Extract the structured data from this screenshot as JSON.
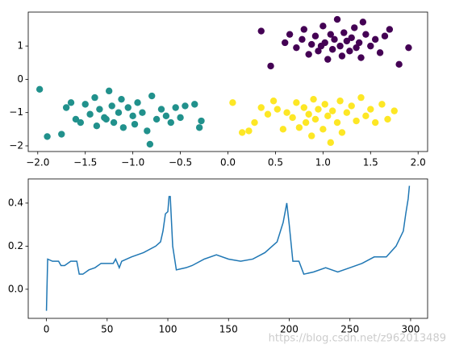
{
  "chart_data": [
    {
      "type": "scatter",
      "xlim": [
        -2.1,
        2.1
      ],
      "ylim": [
        -2.17,
        2.02
      ],
      "xticks": [
        {
          "value": -2,
          "label": "−2.0"
        },
        {
          "value": -1.5,
          "label": "−1.5"
        },
        {
          "value": -1,
          "label": "−1.0"
        },
        {
          "value": -0.5,
          "label": "−0.5"
        },
        {
          "value": 0,
          "label": "0.0"
        },
        0.5,
        {
          "value": 1,
          "label": "1.0"
        },
        1.5,
        {
          "value": 2,
          "label": "2.0"
        }
      ],
      "yticks": [
        {
          "value": -2,
          "label": "−2"
        },
        {
          "value": -1,
          "label": "−1"
        },
        0,
        1
      ],
      "series": [
        {
          "color": "#440154",
          "x": [
            0.35,
            0.45,
            0.6,
            0.65,
            0.72,
            0.78,
            0.8,
            0.85,
            0.88,
            0.92,
            0.95,
            1.0,
            1.02,
            1.05,
            1.08,
            1.1,
            1.12,
            1.15,
            1.18,
            1.2,
            1.22,
            1.25,
            1.28,
            1.3,
            1.33,
            1.35,
            1.38,
            1.4,
            1.45,
            1.5,
            1.55,
            1.6,
            1.65,
            1.7,
            1.8,
            1.9,
            0.98,
            1.42
          ],
          "y": [
            1.45,
            0.4,
            1.1,
            1.35,
            0.95,
            1.2,
            1.5,
            0.75,
            1.05,
            1.3,
            0.85,
            1.6,
            1.1,
            0.6,
            1.35,
            0.9,
            1.2,
            1.8,
            1.0,
            0.7,
            1.4,
            1.15,
            0.85,
            1.25,
            1.55,
            0.95,
            1.1,
            0.65,
            1.35,
            1.0,
            1.2,
            0.8,
            1.3,
            1.5,
            0.45,
            0.95,
            1.0,
            1.72
          ]
        },
        {
          "color": "#21918c",
          "x": [
            -1.98,
            -1.9,
            -1.75,
            -1.7,
            -1.65,
            -1.6,
            -1.55,
            -1.5,
            -1.45,
            -1.4,
            -1.38,
            -1.35,
            -1.3,
            -1.25,
            -1.22,
            -1.2,
            -1.15,
            -1.12,
            -1.1,
            -1.05,
            -1.0,
            -0.98,
            -0.95,
            -0.9,
            -0.85,
            -0.82,
            -0.8,
            -0.75,
            -0.7,
            -0.65,
            -0.6,
            -0.55,
            -0.5,
            -0.45,
            -0.35,
            -0.28,
            -0.3,
            -1.28
          ],
          "y": [
            -0.3,
            -1.72,
            -1.65,
            -0.85,
            -0.7,
            -1.2,
            -1.3,
            -0.75,
            -1.05,
            -0.55,
            -1.4,
            -0.9,
            -1.15,
            -0.35,
            -0.8,
            -1.3,
            -1.0,
            -0.6,
            -1.45,
            -0.85,
            -1.1,
            -1.35,
            -0.7,
            -1.0,
            -1.55,
            -1.95,
            -0.5,
            -1.2,
            -0.9,
            -1.1,
            -1.3,
            -0.85,
            -1.15,
            -0.8,
            -0.75,
            -1.25,
            -1.45,
            -1.2
          ]
        },
        {
          "color": "#fde725",
          "x": [
            0.05,
            0.15,
            0.22,
            0.28,
            0.35,
            0.42,
            0.48,
            0.52,
            0.58,
            0.62,
            0.68,
            0.72,
            0.75,
            0.8,
            0.82,
            0.85,
            0.9,
            0.92,
            0.95,
            1.0,
            1.02,
            1.05,
            1.08,
            1.1,
            1.15,
            1.18,
            1.2,
            1.25,
            1.3,
            1.35,
            1.4,
            1.45,
            1.5,
            1.55,
            1.62,
            1.68,
            1.75,
            0.88
          ],
          "y": [
            -0.7,
            -1.6,
            -1.55,
            -1.3,
            -0.85,
            -1.05,
            -0.65,
            -0.9,
            -1.5,
            -1.0,
            -1.15,
            -0.7,
            -1.45,
            -0.85,
            -1.3,
            -1.05,
            -0.6,
            -1.2,
            -0.9,
            -1.5,
            -0.75,
            -1.1,
            -1.9,
            -0.95,
            -1.3,
            -0.65,
            -1.6,
            -1.0,
            -0.8,
            -1.25,
            -0.55,
            -1.1,
            -0.9,
            -1.3,
            -0.75,
            -1.2,
            -0.95,
            -1.7
          ]
        }
      ]
    },
    {
      "type": "line",
      "xlim": [
        -15,
        314
      ],
      "ylim": [
        -0.135,
        0.512
      ],
      "xticks": [
        0,
        50,
        100,
        150,
        200,
        250,
        300
      ],
      "yticks": [
        {
          "value": 0,
          "label": "0.0"
        },
        {
          "value": 0.2,
          "label": "0.2"
        },
        {
          "value": 0.4,
          "label": "0.4"
        }
      ],
      "annotation": "https://blog.csdn.net/z962013489",
      "series": [
        {
          "color": "#1f77b4",
          "x": [
            0,
            1,
            5,
            10,
            12,
            15,
            20,
            22,
            25,
            27,
            30,
            35,
            40,
            45,
            50,
            55,
            57,
            60,
            62,
            70,
            80,
            90,
            94,
            96,
            98,
            100,
            101,
            102,
            104,
            107,
            115,
            120,
            130,
            140,
            150,
            160,
            170,
            180,
            190,
            195,
            198,
            200,
            203,
            208,
            212,
            220,
            230,
            240,
            250,
            260,
            270,
            280,
            288,
            294,
            296,
            298,
            299
          ],
          "values": [
            -0.1,
            0.14,
            0.13,
            0.13,
            0.11,
            0.11,
            0.13,
            0.13,
            0.13,
            0.07,
            0.07,
            0.09,
            0.1,
            0.12,
            0.12,
            0.12,
            0.14,
            0.1,
            0.13,
            0.15,
            0.17,
            0.2,
            0.22,
            0.27,
            0.35,
            0.36,
            0.43,
            0.43,
            0.2,
            0.09,
            0.1,
            0.11,
            0.14,
            0.16,
            0.14,
            0.13,
            0.14,
            0.17,
            0.22,
            0.31,
            0.4,
            0.3,
            0.13,
            0.13,
            0.07,
            0.08,
            0.1,
            0.08,
            0.1,
            0.12,
            0.15,
            0.15,
            0.2,
            0.27,
            0.35,
            0.42,
            0.48
          ]
        }
      ]
    }
  ]
}
